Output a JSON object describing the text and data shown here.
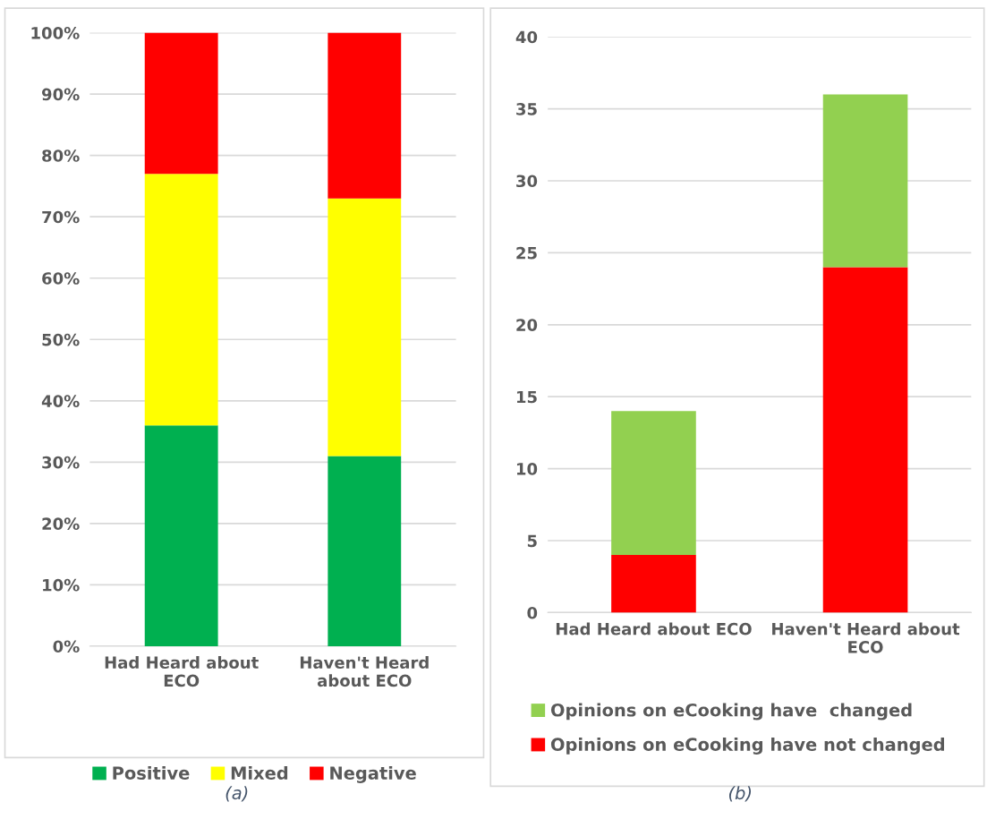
{
  "chart_data": [
    {
      "type": "bar",
      "stacked": true,
      "categories": [
        "Had Heard about ECO",
        "Haven't Heard about ECO"
      ],
      "series": [
        {
          "name": "Positive",
          "color": "#00b050",
          "values": [
            36,
            31
          ]
        },
        {
          "name": "Mixed",
          "color": "#ffff00",
          "values": [
            41,
            42
          ]
        },
        {
          "name": "Negative",
          "color": "#ff0000",
          "values": [
            23,
            27
          ]
        }
      ],
      "ylim": [
        0,
        100
      ],
      "yticks": [
        {
          "value": 0,
          "label": "0%"
        },
        {
          "value": 10,
          "label": "10%"
        },
        {
          "value": 20,
          "label": "20%"
        },
        {
          "value": 30,
          "label": "30%"
        },
        {
          "value": 40,
          "label": "40%"
        },
        {
          "value": 50,
          "label": "50%"
        },
        {
          "value": 60,
          "label": "60%"
        },
        {
          "value": 70,
          "label": "70%"
        },
        {
          "value": 80,
          "label": "80%"
        },
        {
          "value": 90,
          "label": "90%"
        },
        {
          "value": 100,
          "label": "100%"
        }
      ],
      "grid": "y",
      "legend": "bottom",
      "annotations": [
        "(a)"
      ]
    },
    {
      "type": "bar",
      "stacked": true,
      "categories": [
        "Had Heard about ECO",
        "Haven't Heard about ECO"
      ],
      "series": [
        {
          "name": "Opinions on eCooking have not changed",
          "color": "#ff0000",
          "values": [
            4,
            24
          ]
        },
        {
          "name": "Opinions on eCooking have  changed",
          "color": "#92d050",
          "values": [
            10,
            12
          ]
        }
      ],
      "ylim": [
        0,
        40
      ],
      "yticks": [
        0,
        5,
        10,
        15,
        20,
        25,
        30,
        35,
        40
      ],
      "grid": "y",
      "legend": "bottom",
      "annotations": [
        "(b)"
      ]
    }
  ]
}
